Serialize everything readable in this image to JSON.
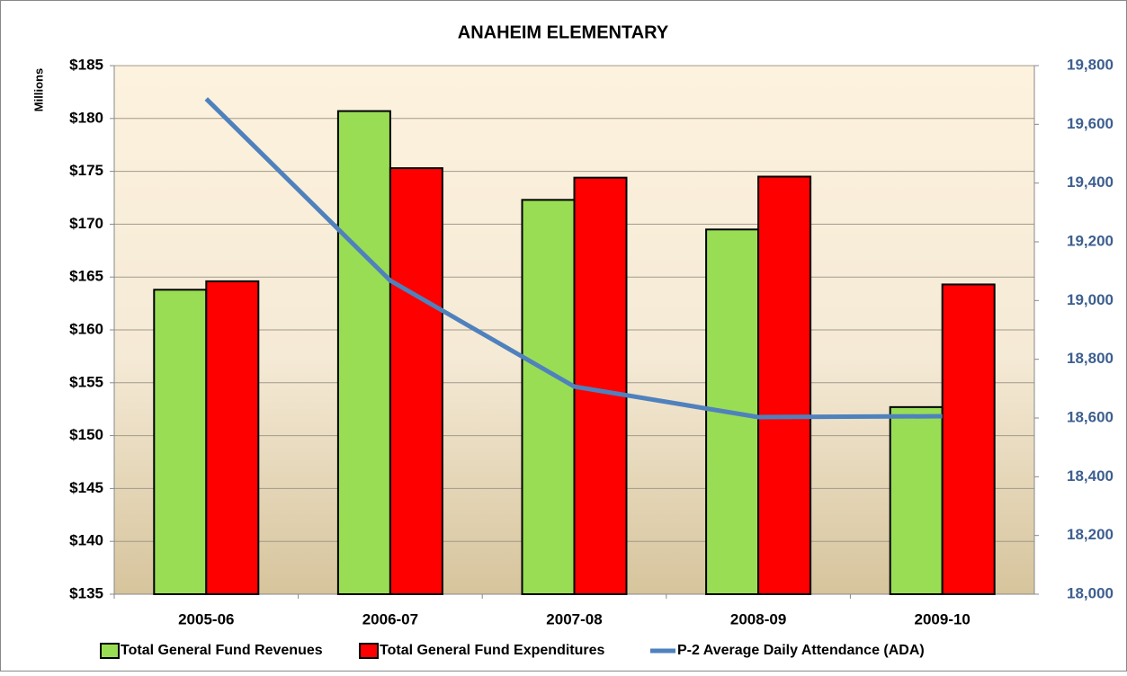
{
  "chart_data": {
    "type": "bar_line",
    "title": "ANAHEIM ELEMENTARY",
    "y_axis_label": "Millions",
    "categories": [
      "2005-06",
      "2006-07",
      "2007-08",
      "2008-09",
      "2009-10"
    ],
    "series": [
      {
        "name": "Total General Fund Revenues",
        "color": "#99dd55",
        "values": [
          163.8,
          180.7,
          172.3,
          169.5,
          152.7
        ]
      },
      {
        "name": "Total General Fund Expenditures",
        "color": "#ff0000",
        "values": [
          164.6,
          175.3,
          174.4,
          174.5,
          164.3
        ]
      },
      {
        "name": "P-2 Average Daily Attendance (ADA)",
        "color": "#4f81bd",
        "axis": "y2",
        "values": [
          19687,
          19068,
          18707,
          18603,
          18606
        ]
      }
    ],
    "ylim": [
      135,
      185
    ],
    "yticks": [
      {
        "value": 135,
        "label": "$135"
      },
      {
        "value": 140,
        "label": "$140"
      },
      {
        "value": 145,
        "label": "$145"
      },
      {
        "value": 150,
        "label": "$150"
      },
      {
        "value": 155,
        "label": "$155"
      },
      {
        "value": 160,
        "label": "$160"
      },
      {
        "value": 165,
        "label": "$165"
      },
      {
        "value": 170,
        "label": "$170"
      },
      {
        "value": 175,
        "label": "$175"
      },
      {
        "value": 180,
        "label": "$180"
      },
      {
        "value": 185,
        "label": "$185"
      }
    ],
    "y2lim": [
      18000,
      19800
    ],
    "y2ticks": [
      {
        "value": 18000,
        "label": "18,000"
      },
      {
        "value": 18200,
        "label": "18,200"
      },
      {
        "value": 18400,
        "label": "18,400"
      },
      {
        "value": 18600,
        "label": "18,600"
      },
      {
        "value": 18800,
        "label": "18,800"
      },
      {
        "value": 19000,
        "label": "19,000"
      },
      {
        "value": 19200,
        "label": "19,200"
      },
      {
        "value": 19400,
        "label": "19,400"
      },
      {
        "value": 19600,
        "label": "19,600"
      },
      {
        "value": 19800,
        "label": "19,800"
      }
    ],
    "grid": true,
    "legend": "bottom"
  }
}
